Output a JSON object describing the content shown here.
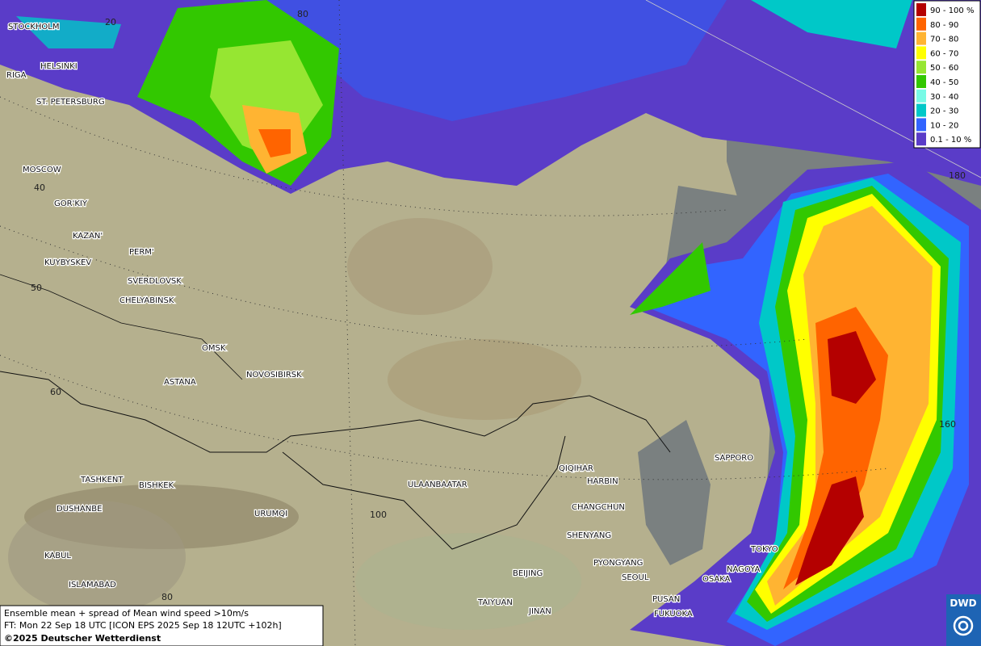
{
  "legend": {
    "items": [
      {
        "label": "90 - 100 %",
        "color": "#b40000"
      },
      {
        "label": "80 - 90",
        "color": "#ff6400"
      },
      {
        "label": "70 - 80",
        "color": "#ffb432"
      },
      {
        "label": "60 - 70",
        "color": "#ffff00"
      },
      {
        "label": "50 - 60",
        "color": "#96e632"
      },
      {
        "label": "40 - 50",
        "color": "#32c800"
      },
      {
        "label": "30 - 40",
        "color": "#78fae6"
      },
      {
        "label": "20 - 30",
        "color": "#00c8c8"
      },
      {
        "label": "10 - 20",
        "color": "#3264ff"
      },
      {
        "label": "0.1 - 10 %",
        "color": "#5a3cc8"
      }
    ]
  },
  "cities": [
    "STOCKHOLM",
    "HELSINKI",
    "RIGA",
    "ST. PETERSBURG",
    "MOSCOW",
    "GOR'KIY",
    "KAZAN'",
    "PERM'",
    "KUYBYSKEV",
    "SVERDLOVSK",
    "CHELYABINSK",
    "OMSK",
    "NOVOSIBIRSK",
    "ASTANA",
    "TASHKENT",
    "BISHKEK",
    "DUSHANBE",
    "URUMQI",
    "KABUL",
    "ISLAMABAD",
    "ULAANBAATAR",
    "QIQIHAR",
    "HARBIN",
    "CHANGCHUN",
    "SHENYANG",
    "PYONGYANG",
    "SEOUL",
    "BEIJING",
    "TAIYUAN",
    "JINAN",
    "PUSAN",
    "FUKUOKA",
    "SAPPORO",
    "TOKYO",
    "NAGOYA",
    "OSAKA"
  ],
  "graticule_labels": [
    "20",
    "80",
    "40",
    "50",
    "60",
    "100",
    "80",
    "180",
    "160"
  ],
  "info": {
    "line1": "Ensemble mean + spread of Mean wind speed >10m/s",
    "line2": "FT: Mon 22 Sep 18 UTC [ICON EPS 2025 Sep 18 12UTC +102h]",
    "copyright": "©2025 Deutscher Wetterdienst"
  },
  "logo": "DWD"
}
